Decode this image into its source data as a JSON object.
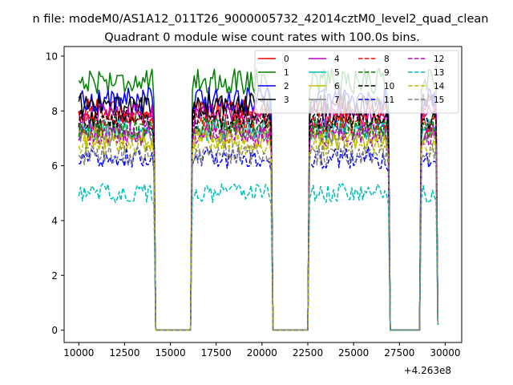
{
  "figure": {
    "suptitle": "n file: modeM0/AS1A12_011T26_9000005732_42014cztM0_level2_quad_clean",
    "offset_label": "+4.263e8"
  },
  "chart_data": {
    "type": "line",
    "title": "Quadrant 0 module wise count rates with 100.0s bins.",
    "xlabel": "",
    "ylabel": "",
    "xlim": [
      9200,
      30900
    ],
    "ylim": [
      -0.45,
      10.35
    ],
    "x_offset": 426300000,
    "xticks": [
      10000,
      12500,
      15000,
      17500,
      20000,
      22500,
      25000,
      27500,
      30000
    ],
    "xtick_labels": [
      "10000",
      "12500",
      "15000",
      "17500",
      "20000",
      "22500",
      "25000",
      "27500",
      "30000"
    ],
    "yticks": [
      0,
      2,
      4,
      6,
      8,
      10
    ],
    "ytick_labels": [
      "0",
      "2",
      "4",
      "6",
      "8",
      "10"
    ],
    "grid": false,
    "legend_position": "upper right",
    "legend_columns": 4,
    "segments": [
      {
        "x_start": 10000,
        "x_end": 14100,
        "step": 100
      },
      {
        "x_start": 16200,
        "x_end": 20500,
        "step": 100
      },
      {
        "x_start": 22600,
        "x_end": 26900,
        "step": 100
      },
      {
        "x_start": 28700,
        "x_end": 29600,
        "step": 100
      }
    ],
    "gaps": [
      {
        "x_start": 14200,
        "x_end": 16100,
        "value": 0
      },
      {
        "x_start": 20600,
        "x_end": 22500,
        "value": 0
      },
      {
        "x_start": 27000,
        "x_end": 28600,
        "value": 0
      }
    ],
    "series": [
      {
        "name": "0",
        "color": "#ff0000",
        "dash": "solid",
        "level": 8.0,
        "noise": 0.28
      },
      {
        "name": "1",
        "color": "#008000",
        "dash": "solid",
        "level": 9.1,
        "noise": 0.3
      },
      {
        "name": "2",
        "color": "#0000ff",
        "dash": "solid",
        "level": 8.4,
        "noise": 0.3
      },
      {
        "name": "3",
        "color": "#000000",
        "dash": "solid",
        "level": 8.2,
        "noise": 0.28
      },
      {
        "name": "4",
        "color": "#bf00bf",
        "dash": "solid",
        "level": 7.8,
        "noise": 0.28
      },
      {
        "name": "5",
        "color": "#00bfbf",
        "dash": "solid",
        "level": 7.3,
        "noise": 0.25
      },
      {
        "name": "6",
        "color": "#bfbf00",
        "dash": "solid",
        "level": 7.0,
        "noise": 0.25
      },
      {
        "name": "7",
        "color": "#808080",
        "dash": "solid",
        "level": 7.2,
        "noise": 0.25
      },
      {
        "name": "8",
        "color": "#ff0000",
        "dash": "dashed",
        "level": 7.6,
        "noise": 0.25
      },
      {
        "name": "9",
        "color": "#008000",
        "dash": "dashed",
        "level": 7.4,
        "noise": 0.25
      },
      {
        "name": "10",
        "color": "#000000",
        "dash": "dashed",
        "level": 7.7,
        "noise": 0.25
      },
      {
        "name": "11",
        "color": "#0000ff",
        "dash": "dashed",
        "level": 6.3,
        "noise": 0.25
      },
      {
        "name": "12",
        "color": "#bf00bf",
        "dash": "dashed",
        "level": 7.1,
        "noise": 0.25
      },
      {
        "name": "13",
        "color": "#00bfbf",
        "dash": "dashed",
        "level": 5.0,
        "noise": 0.22
      },
      {
        "name": "14",
        "color": "#bfbf00",
        "dash": "dashed",
        "level": 6.8,
        "noise": 0.25
      },
      {
        "name": "15",
        "color": "#808080",
        "dash": "dashed",
        "level": 6.4,
        "noise": 0.25
      }
    ]
  }
}
